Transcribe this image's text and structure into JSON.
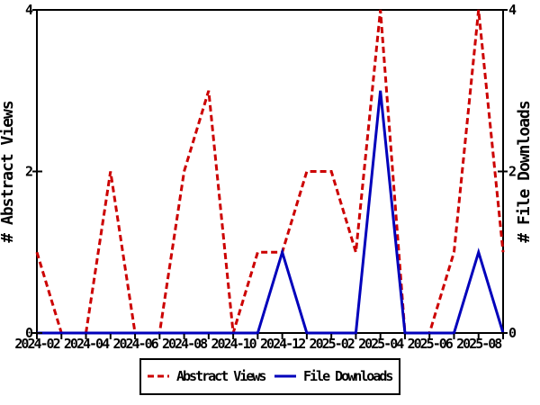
{
  "chart_data": {
    "type": "line",
    "title": "",
    "months": [
      "2024-02",
      "2024-03",
      "2024-04",
      "2024-05",
      "2024-06",
      "2024-07",
      "2024-08",
      "2024-09",
      "2024-10",
      "2024-11",
      "2024-12",
      "2025-01",
      "2025-02",
      "2025-03",
      "2025-04",
      "2025-05",
      "2025-06",
      "2025-07",
      "2025-08",
      "2025-09"
    ],
    "x_tick_labels": [
      "2024-02",
      "2024-04",
      "2024-06",
      "2024-08",
      "2024-10",
      "2024-12",
      "2025-02",
      "2025-04",
      "2025-06",
      "2025-08"
    ],
    "y_ticks": [
      0,
      2,
      4
    ],
    "ylim": [
      0,
      4
    ],
    "grid": "off",
    "left_axis_label": "# Abstract Views",
    "right_axis_label": "# File Downloads",
    "series": [
      {
        "name": "Abstract Views",
        "color": "#cc0000",
        "style": "dashed",
        "values": [
          1,
          0,
          0,
          2,
          0,
          0,
          2,
          3,
          0,
          1,
          1,
          2,
          2,
          1,
          4,
          0,
          0,
          1,
          4,
          1
        ]
      },
      {
        "name": "File Downloads",
        "color": "#0000bb",
        "style": "solid",
        "values": [
          0,
          0,
          0,
          0,
          0,
          0,
          0,
          0,
          0,
          0,
          1,
          0,
          0,
          0,
          3,
          0,
          0,
          0,
          1,
          0
        ]
      }
    ],
    "legend_position": "bottom-center",
    "axis_color": "#000000",
    "background_color": "#ffffff"
  }
}
